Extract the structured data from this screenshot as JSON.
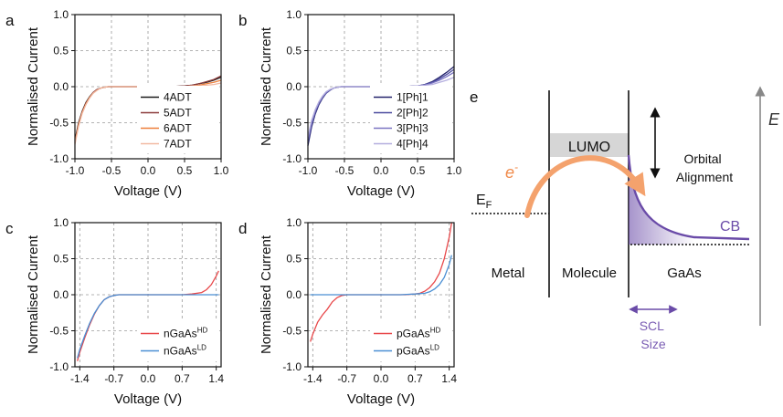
{
  "panels": [
    {
      "id": "a",
      "letter": "a",
      "chart_data": {
        "type": "line",
        "xlabel": "Voltage (V)",
        "ylabel": "Normalised Current",
        "xlim": [
          -1.0,
          1.0
        ],
        "ylim": [
          -1.0,
          1.0
        ],
        "xticks": [
          -1.0,
          -0.5,
          0.0,
          0.5,
          1.0
        ],
        "xtick_labels": [
          "-1.0",
          "-0.5",
          "0.0",
          "0.5",
          "1.0"
        ],
        "yticks": [
          -1.0,
          -0.5,
          0.0,
          0.5,
          1.0
        ],
        "ytick_labels": [
          "-1.0",
          "-0.5",
          "0.0",
          "0.5",
          "1.0"
        ],
        "grid": true,
        "legend_position": "bottom-right",
        "series": [
          {
            "name": "4ADT",
            "color": "#1a1a1a",
            "x": [
              -1.0,
              -0.95,
              -0.9,
              -0.85,
              -0.8,
              -0.75,
              -0.7,
              -0.65,
              -0.6,
              -0.55,
              -0.5,
              -0.3,
              0.0,
              0.3,
              0.5,
              0.6,
              0.7,
              0.8,
              0.9,
              1.0
            ],
            "y": [
              -0.74,
              -0.5,
              -0.34,
              -0.22,
              -0.14,
              -0.08,
              -0.04,
              -0.02,
              -0.01,
              0.0,
              0.0,
              0.0,
              0.0,
              0.0,
              0.01,
              0.02,
              0.04,
              0.06,
              0.09,
              0.13
            ]
          },
          {
            "name": "5ADT",
            "color": "#8b3a3a",
            "x": [
              -1.0,
              -0.95,
              -0.9,
              -0.85,
              -0.8,
              -0.75,
              -0.7,
              -0.65,
              -0.6,
              -0.55,
              -0.5,
              -0.3,
              0.0,
              0.3,
              0.5,
              0.6,
              0.7,
              0.8,
              0.9,
              1.0
            ],
            "y": [
              -0.77,
              -0.52,
              -0.35,
              -0.23,
              -0.15,
              -0.08,
              -0.04,
              -0.02,
              -0.01,
              0.0,
              0.0,
              0.0,
              0.0,
              0.0,
              0.01,
              0.02,
              0.04,
              0.07,
              0.1,
              0.15
            ]
          },
          {
            "name": "6ADT",
            "color": "#ee7f3a",
            "x": [
              -1.0,
              -0.95,
              -0.9,
              -0.85,
              -0.8,
              -0.75,
              -0.7,
              -0.65,
              -0.6,
              -0.55,
              -0.5,
              -0.3,
              0.0,
              0.3,
              0.5,
              0.6,
              0.7,
              0.8,
              0.9,
              1.0
            ],
            "y": [
              -0.78,
              -0.53,
              -0.36,
              -0.24,
              -0.15,
              -0.09,
              -0.05,
              -0.02,
              -0.01,
              0.0,
              0.0,
              0.0,
              0.0,
              0.0,
              0.0,
              0.01,
              0.02,
              0.04,
              0.06,
              0.09
            ]
          },
          {
            "name": "7ADT",
            "color": "#f2b9a2",
            "x": [
              -1.0,
              -0.95,
              -0.9,
              -0.85,
              -0.8,
              -0.75,
              -0.7,
              -0.65,
              -0.6,
              -0.55,
              -0.5,
              -0.3,
              0.0,
              0.3,
              0.5,
              0.6,
              0.7,
              0.8,
              0.9,
              1.0
            ],
            "y": [
              -0.8,
              -0.55,
              -0.37,
              -0.25,
              -0.16,
              -0.09,
              -0.05,
              -0.02,
              -0.01,
              0.0,
              0.0,
              0.0,
              0.0,
              0.0,
              0.0,
              0.01,
              0.01,
              0.02,
              0.03,
              0.05
            ]
          }
        ]
      }
    },
    {
      "id": "b",
      "letter": "b",
      "chart_data": {
        "type": "line",
        "xlabel": "Voltage (V)",
        "ylabel": "Normalised Current",
        "xlim": [
          -1.0,
          1.0
        ],
        "ylim": [
          -1.0,
          1.0
        ],
        "xticks": [
          -1.0,
          -0.5,
          0.0,
          0.5,
          1.0
        ],
        "xtick_labels": [
          "-1.0",
          "-0.5",
          "0.0",
          "0.5",
          "1.0"
        ],
        "yticks": [
          -1.0,
          -0.5,
          0.0,
          0.5,
          1.0
        ],
        "ytick_labels": [
          "-1.0",
          "-0.5",
          "0.0",
          "0.5",
          "1.0"
        ],
        "grid": true,
        "legend_position": "bottom-right",
        "series": [
          {
            "name": "1[Ph]1",
            "color": "#24236b",
            "x": [
              -1.0,
              -0.95,
              -0.9,
              -0.85,
              -0.8,
              -0.75,
              -0.7,
              -0.65,
              -0.6,
              -0.55,
              -0.5,
              -0.3,
              0.0,
              0.3,
              0.5,
              0.6,
              0.7,
              0.8,
              0.9,
              1.0
            ],
            "y": [
              -0.82,
              -0.56,
              -0.38,
              -0.25,
              -0.16,
              -0.09,
              -0.05,
              -0.02,
              -0.01,
              0.0,
              0.0,
              0.0,
              0.0,
              0.0,
              0.01,
              0.03,
              0.07,
              0.13,
              0.2,
              0.28
            ]
          },
          {
            "name": "2[Ph]2",
            "color": "#4a4a9e",
            "x": [
              -1.0,
              -0.95,
              -0.9,
              -0.85,
              -0.8,
              -0.75,
              -0.7,
              -0.65,
              -0.6,
              -0.55,
              -0.5,
              -0.3,
              0.0,
              0.3,
              0.5,
              0.6,
              0.7,
              0.8,
              0.9,
              1.0
            ],
            "y": [
              -0.78,
              -0.53,
              -0.36,
              -0.24,
              -0.15,
              -0.09,
              -0.05,
              -0.02,
              -0.01,
              0.0,
              0.0,
              0.0,
              0.0,
              0.0,
              0.01,
              0.03,
              0.06,
              0.11,
              0.17,
              0.24
            ]
          },
          {
            "name": "3[Ph]3",
            "color": "#7a74c2",
            "x": [
              -1.0,
              -0.95,
              -0.9,
              -0.85,
              -0.8,
              -0.75,
              -0.7,
              -0.65,
              -0.6,
              -0.55,
              -0.5,
              -0.3,
              0.0,
              0.3,
              0.5,
              0.6,
              0.7,
              0.8,
              0.9,
              1.0
            ],
            "y": [
              -0.74,
              -0.5,
              -0.34,
              -0.22,
              -0.14,
              -0.08,
              -0.04,
              -0.02,
              -0.01,
              0.0,
              0.0,
              0.0,
              0.0,
              0.0,
              0.01,
              0.02,
              0.05,
              0.09,
              0.14,
              0.2
            ]
          },
          {
            "name": "4[Ph]4",
            "color": "#b4aede",
            "x": [
              -1.0,
              -0.95,
              -0.9,
              -0.85,
              -0.8,
              -0.75,
              -0.7,
              -0.65,
              -0.6,
              -0.55,
              -0.5,
              -0.3,
              0.0,
              0.3,
              0.5,
              0.6,
              0.7,
              0.8,
              0.9,
              1.0
            ],
            "y": [
              -0.7,
              -0.47,
              -0.32,
              -0.21,
              -0.13,
              -0.07,
              -0.04,
              -0.02,
              -0.01,
              0.0,
              0.0,
              0.0,
              0.0,
              0.0,
              0.01,
              0.02,
              0.03,
              0.06,
              0.09,
              0.13
            ]
          }
        ]
      }
    },
    {
      "id": "c",
      "letter": "c",
      "chart_data": {
        "type": "line",
        "xlabel": "Voltage (V)",
        "ylabel": "Normalised Current",
        "xlim": [
          -1.5,
          1.5
        ],
        "ylim": [
          -1.0,
          1.0
        ],
        "xticks": [
          -1.4,
          -0.7,
          0.0,
          0.7,
          1.4
        ],
        "xtick_labels": [
          "-1.4",
          "-0.7",
          "0.0",
          "0.7",
          "1.4"
        ],
        "yticks": [
          -1.0,
          -0.5,
          0.0,
          0.5,
          1.0
        ],
        "ytick_labels": [
          "-1.0",
          "-0.5",
          "0.0",
          "0.5",
          "1.0"
        ],
        "grid": true,
        "legend_position": "bottom-right",
        "series": [
          {
            "name": "nGaAs",
            "name_sup": "HD",
            "color": "#e8484a",
            "x": [
              -1.45,
              -1.4,
              -1.3,
              -1.2,
              -1.1,
              -1.0,
              -0.9,
              -0.8,
              -0.7,
              -0.6,
              -0.4,
              0.0,
              0.4,
              0.7,
              0.9,
              1.1,
              1.2,
              1.3,
              1.4,
              1.45
            ],
            "y": [
              -0.92,
              -0.8,
              -0.6,
              -0.42,
              -0.27,
              -0.15,
              -0.07,
              -0.03,
              -0.01,
              0.0,
              0.0,
              0.0,
              0.0,
              0.0,
              0.01,
              0.03,
              0.07,
              0.14,
              0.26,
              0.33
            ]
          },
          {
            "name": "nGaAs",
            "name_sup": "LD",
            "color": "#4a8fd4",
            "x": [
              -1.45,
              -1.4,
              -1.3,
              -1.2,
              -1.1,
              -1.0,
              -0.9,
              -0.8,
              -0.7,
              -0.6,
              -0.4,
              0.0,
              0.4,
              0.7,
              0.9,
              1.1,
              1.2,
              1.3,
              1.4,
              1.45
            ],
            "y": [
              -0.88,
              -0.76,
              -0.57,
              -0.4,
              -0.26,
              -0.15,
              -0.07,
              -0.03,
              -0.01,
              0.0,
              0.0,
              0.0,
              0.0,
              0.0,
              0.0,
              0.0,
              0.0,
              0.0,
              0.0,
              0.0
            ]
          }
        ]
      }
    },
    {
      "id": "d",
      "letter": "d",
      "chart_data": {
        "type": "line",
        "xlabel": "Voltage (V)",
        "ylabel": "Normalised Current",
        "xlim": [
          -1.5,
          1.5
        ],
        "ylim": [
          -1.0,
          1.0
        ],
        "xticks": [
          -1.4,
          -0.7,
          0.0,
          0.7,
          1.4
        ],
        "xtick_labels": [
          "-1.4",
          "-0.7",
          "0.0",
          "0.7",
          "1.4"
        ],
        "yticks": [
          -1.0,
          -0.5,
          0.0,
          0.5,
          1.0
        ],
        "ytick_labels": [
          "-1.0",
          "-0.5",
          "0.0",
          "0.5",
          "1.0"
        ],
        "grid": true,
        "legend_position": "bottom-right",
        "series": [
          {
            "name": "pGaAs",
            "name_sup": "HD",
            "color": "#e8484a",
            "x": [
              -1.45,
              -1.4,
              -1.3,
              -1.2,
              -1.1,
              -1.0,
              -0.9,
              -0.8,
              -0.7,
              -0.5,
              0.0,
              0.5,
              0.7,
              0.8,
              0.9,
              1.0,
              1.1,
              1.2,
              1.3,
              1.4,
              1.45
            ],
            "y": [
              -0.65,
              -0.55,
              -0.38,
              -0.28,
              -0.2,
              -0.1,
              -0.04,
              -0.01,
              0.0,
              0.0,
              0.0,
              0.0,
              0.01,
              0.02,
              0.05,
              0.1,
              0.18,
              0.3,
              0.5,
              0.8,
              1.0
            ]
          },
          {
            "name": "pGaAs",
            "name_sup": "LD",
            "color": "#4a8fd4",
            "x": [
              -1.45,
              -1.2,
              -0.8,
              -0.4,
              0.0,
              0.4,
              0.7,
              0.9,
              1.0,
              1.1,
              1.2,
              1.3,
              1.4,
              1.45
            ],
            "y": [
              0.0,
              0.0,
              0.0,
              0.0,
              0.0,
              0.0,
              0.01,
              0.02,
              0.04,
              0.08,
              0.14,
              0.24,
              0.42,
              0.55
            ]
          }
        ]
      }
    }
  ],
  "diagram": {
    "letter": "e",
    "region_labels": [
      "Metal",
      "Molecule",
      "GaAs"
    ],
    "lumo_label": "LUMO",
    "electron_label": "e",
    "electron_sup": "-",
    "fermi_label": "E",
    "fermi_sub": "F",
    "cb_label": "CB",
    "orbital_alignment_label": [
      "Orbital",
      "Alignment"
    ],
    "scl_label": [
      "SCL",
      "Size"
    ],
    "energy_label": "E",
    "colors": {
      "electron_arrow": "#f4a26d",
      "band": "#6a4ba8",
      "lumo_fill": "#d6d6d6",
      "scl_text": "#7a5cb3",
      "energy_axis": "#888888"
    }
  }
}
